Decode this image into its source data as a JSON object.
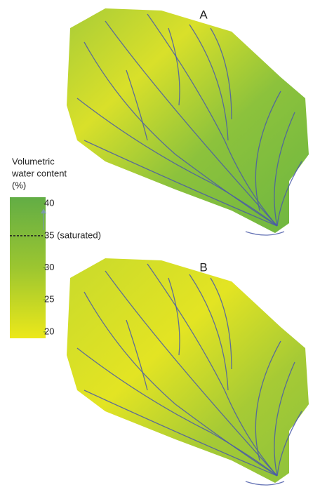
{
  "legend": {
    "title": [
      "Volumetric",
      "water content",
      "(%)"
    ],
    "lim": [
      19,
      41
    ],
    "ticks": [
      40,
      {
        "value": 35,
        "label": "35 (saturated)"
      },
      30,
      25,
      20
    ]
  },
  "panels": [
    {
      "label": "A"
    },
    {
      "label": "B"
    }
  ]
}
